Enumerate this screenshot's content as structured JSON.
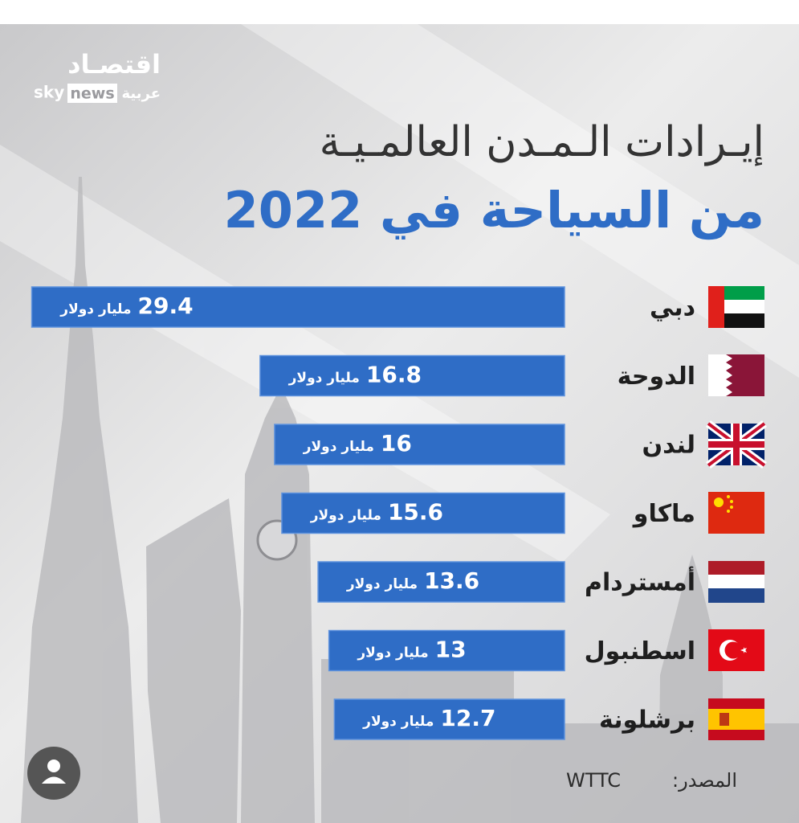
{
  "logo": {
    "brand": "اقتصـاد",
    "sky": "sky",
    "news": "news",
    "arabia": "عربية"
  },
  "chart_data": {
    "type": "hbar",
    "title": "إيـرادات الـمـدن العالمـيـة",
    "subtitle": "من السياحة في 2022",
    "categories": [
      "دبي",
      "الدوحة",
      "لندن",
      "ماكاو",
      "أمستردام",
      "اسطنبول",
      "برشلونة"
    ],
    "values": [
      29.4,
      16.8,
      16,
      15.6,
      13.6,
      13,
      12.7
    ],
    "value_unit": "مليار دولار",
    "color": "#2f6dc6",
    "xlim": [
      0,
      30
    ],
    "source_label": "المصدر:",
    "source": "WTTC"
  }
}
